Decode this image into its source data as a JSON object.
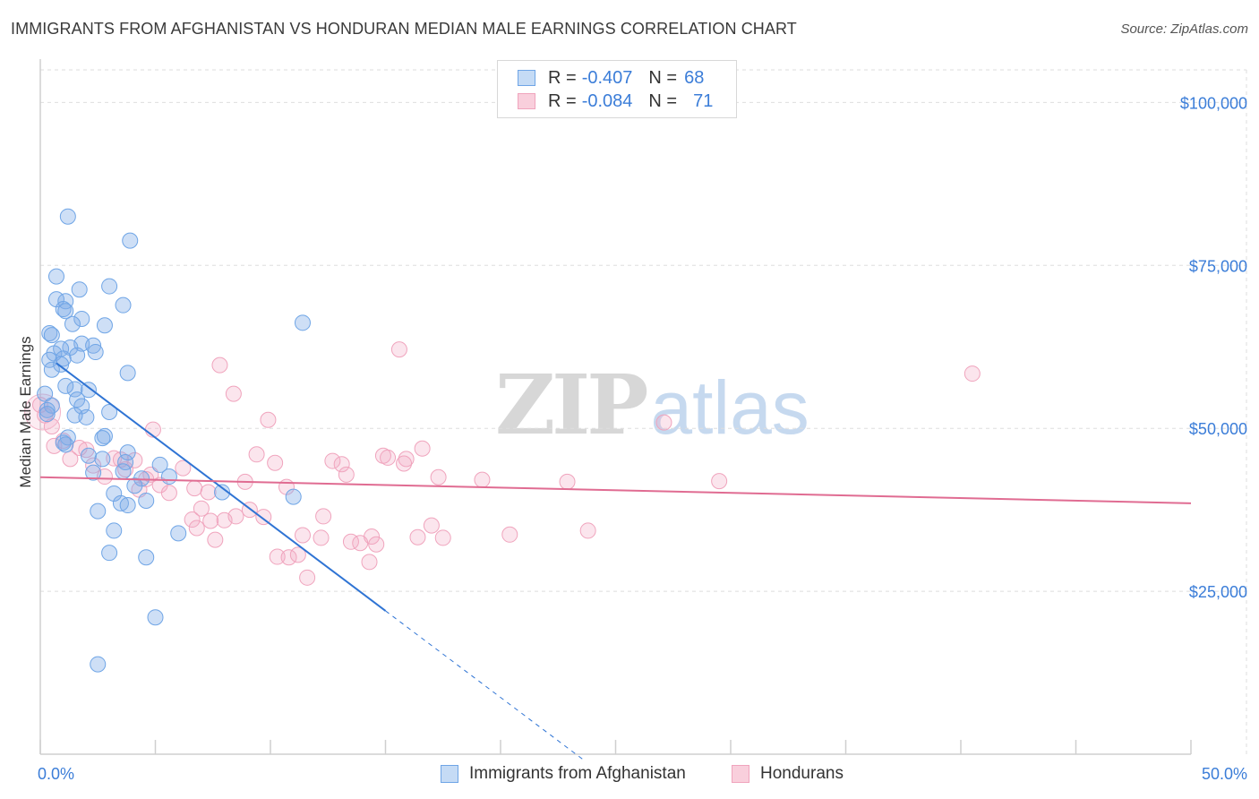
{
  "title": "IMMIGRANTS FROM AFGHANISTAN VS HONDURAN MEDIAN MALE EARNINGS CORRELATION CHART",
  "source": "Source: ZipAtlas.com",
  "watermark": {
    "zip": "ZIP",
    "atlas": "atlas"
  },
  "legend": {
    "rows": [
      {
        "r_label": "R =",
        "r_value": "-0.407",
        "n_label": "N =",
        "n_value": "68"
      },
      {
        "r_label": "R =",
        "r_value": "-0.084",
        "n_label": "N =",
        "n_value": "71"
      }
    ]
  },
  "chart_data": {
    "type": "scatter",
    "xlabel": "",
    "ylabel": "Median Male Earnings",
    "xlim": [
      0,
      50
    ],
    "ylim": [
      0,
      105000
    ],
    "x_tick_labels": [
      "0.0%",
      "50.0%"
    ],
    "y_ticks": [
      25000,
      50000,
      75000,
      100000
    ],
    "y_tick_labels": [
      "$25,000",
      "$50,000",
      "$75,000",
      "$100,000"
    ],
    "colors": {
      "blue": "#6fa5e6",
      "blue_line": "#2f74d4",
      "pink": "#f0a4bd",
      "pink_line": "#e06c92"
    },
    "series": [
      {
        "name": "Immigrants from Afghanistan",
        "color": "blue",
        "trend": {
          "x0": 0.7,
          "y0": 60000,
          "x1": 15,
          "y1": 22000,
          "dash_to_x": 23.7
        },
        "points": [
          [
            1.2,
            82500
          ],
          [
            3.9,
            78800
          ],
          [
            0.7,
            73300
          ],
          [
            3.0,
            71800
          ],
          [
            1.7,
            71300
          ],
          [
            0.7,
            69800
          ],
          [
            1.1,
            69500
          ],
          [
            3.6,
            68900
          ],
          [
            1.0,
            68300
          ],
          [
            1.1,
            68000
          ],
          [
            1.8,
            66800
          ],
          [
            1.4,
            66000
          ],
          [
            2.8,
            65800
          ],
          [
            11.4,
            66200
          ],
          [
            0.4,
            64600
          ],
          [
            0.5,
            64300
          ],
          [
            1.8,
            63000
          ],
          [
            2.3,
            62700
          ],
          [
            1.3,
            62400
          ],
          [
            0.9,
            62200
          ],
          [
            2.4,
            61700
          ],
          [
            0.6,
            61500
          ],
          [
            1.6,
            61200
          ],
          [
            0.4,
            60500
          ],
          [
            1.0,
            60700
          ],
          [
            0.9,
            59800
          ],
          [
            0.5,
            59000
          ],
          [
            3.8,
            58500
          ],
          [
            1.5,
            56000
          ],
          [
            1.1,
            56500
          ],
          [
            2.1,
            55900
          ],
          [
            1.6,
            54400
          ],
          [
            0.2,
            55300
          ],
          [
            1.8,
            53400
          ],
          [
            0.5,
            53500
          ],
          [
            0.3,
            52800
          ],
          [
            3.0,
            52500
          ],
          [
            0.3,
            52200
          ],
          [
            2.0,
            51700
          ],
          [
            1.5,
            52000
          ],
          [
            2.8,
            48800
          ],
          [
            2.7,
            48500
          ],
          [
            1.2,
            48600
          ],
          [
            1.1,
            47500
          ],
          [
            1.0,
            47800
          ],
          [
            3.8,
            46300
          ],
          [
            2.1,
            45800
          ],
          [
            2.7,
            45300
          ],
          [
            3.7,
            44800
          ],
          [
            5.2,
            44400
          ],
          [
            3.6,
            43400
          ],
          [
            2.3,
            43200
          ],
          [
            4.4,
            42300
          ],
          [
            5.6,
            42600
          ],
          [
            7.9,
            40200
          ],
          [
            11.0,
            39500
          ],
          [
            3.2,
            40000
          ],
          [
            3.5,
            38500
          ],
          [
            4.6,
            38900
          ],
          [
            3.8,
            38200
          ],
          [
            2.5,
            37300
          ],
          [
            6.0,
            33900
          ],
          [
            3.2,
            34300
          ],
          [
            3.0,
            30900
          ],
          [
            4.6,
            30200
          ],
          [
            5.0,
            21000
          ],
          [
            2.5,
            13800
          ],
          [
            4.1,
            41200
          ]
        ]
      },
      {
        "name": "Hondurans",
        "color": "pink",
        "trend": {
          "x0": 0,
          "y0": 42500,
          "x1": 50,
          "y1": 38500
        },
        "points": [
          [
            0.0,
            53600
          ],
          [
            0.2,
            52000
          ],
          [
            0.5,
            50300
          ],
          [
            0.6,
            47300
          ],
          [
            1.0,
            48100
          ],
          [
            1.3,
            45300
          ],
          [
            1.7,
            47000
          ],
          [
            2.0,
            46700
          ],
          [
            2.3,
            44300
          ],
          [
            2.8,
            42600
          ],
          [
            3.2,
            45400
          ],
          [
            3.5,
            45200
          ],
          [
            3.7,
            43700
          ],
          [
            4.1,
            45100
          ],
          [
            4.3,
            40600
          ],
          [
            4.8,
            42900
          ],
          [
            4.9,
            49800
          ],
          [
            5.2,
            41300
          ],
          [
            5.6,
            40100
          ],
          [
            6.2,
            43900
          ],
          [
            6.6,
            36000
          ],
          [
            6.7,
            40800
          ],
          [
            6.8,
            34700
          ],
          [
            7.0,
            37700
          ],
          [
            7.3,
            40200
          ],
          [
            7.4,
            35800
          ],
          [
            7.6,
            32900
          ],
          [
            7.8,
            59700
          ],
          [
            8.0,
            35900
          ],
          [
            8.5,
            36500
          ],
          [
            8.4,
            55300
          ],
          [
            8.9,
            41800
          ],
          [
            9.1,
            37500
          ],
          [
            9.4,
            46000
          ],
          [
            9.7,
            36400
          ],
          [
            9.9,
            51300
          ],
          [
            10.3,
            30300
          ],
          [
            10.8,
            30200
          ],
          [
            10.7,
            41000
          ],
          [
            11.2,
            30600
          ],
          [
            11.4,
            33600
          ],
          [
            11.6,
            27100
          ],
          [
            12.3,
            36500
          ],
          [
            12.7,
            45000
          ],
          [
            13.1,
            44500
          ],
          [
            13.3,
            42900
          ],
          [
            13.5,
            32600
          ],
          [
            13.9,
            32400
          ],
          [
            14.3,
            29500
          ],
          [
            14.4,
            33400
          ],
          [
            14.6,
            32200
          ],
          [
            14.9,
            45800
          ],
          [
            15.1,
            45500
          ],
          [
            15.6,
            62100
          ],
          [
            15.9,
            45300
          ],
          [
            16.4,
            33300
          ],
          [
            16.6,
            46900
          ],
          [
            17.0,
            35100
          ],
          [
            17.3,
            42500
          ],
          [
            17.5,
            33200
          ],
          [
            19.2,
            42100
          ],
          [
            20.4,
            33700
          ],
          [
            22.9,
            41800
          ],
          [
            23.8,
            34300
          ],
          [
            27.1,
            50900
          ],
          [
            29.5,
            41900
          ],
          [
            40.5,
            58400
          ],
          [
            15.8,
            44600
          ],
          [
            12.2,
            33200
          ],
          [
            10.2,
            44700
          ],
          [
            4.6,
            42200
          ]
        ]
      }
    ]
  }
}
